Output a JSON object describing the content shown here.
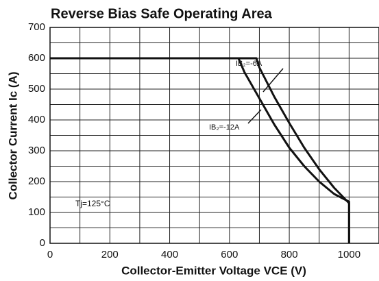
{
  "chart_data": {
    "type": "line",
    "title": "Reverse Bias Safe Operating Area",
    "x_label": "Collector-Emitter Voltage VCE (V)",
    "y_label": "Collector Current Ic (A)",
    "xlim": [
      0,
      1100
    ],
    "ylim": [
      0,
      700
    ],
    "xticks": [
      0,
      200,
      400,
      600,
      800,
      1000
    ],
    "yticks": [
      0,
      100,
      200,
      300,
      400,
      500,
      600,
      700
    ],
    "x_minor_ticks": [
      100,
      300,
      500,
      700,
      900
    ],
    "y_minor_ticks": [
      50,
      150,
      250,
      350,
      450,
      550,
      650
    ],
    "grid": true,
    "series": [
      {
        "name": "IB₂=-6A",
        "color": "#111111",
        "x": [
          0,
          690,
          700,
          750,
          800,
          850,
          900,
          950,
          1000,
          1000
        ],
        "values": [
          600,
          600,
          570,
          475,
          390,
          310,
          240,
          180,
          130,
          0
        ]
      },
      {
        "name": "IB₂=-12A",
        "color": "#111111",
        "x": [
          0,
          630,
          650,
          700,
          750,
          800,
          850,
          900,
          950,
          1000,
          1000
        ],
        "values": [
          600,
          600,
          555,
          470,
          385,
          310,
          250,
          200,
          160,
          135,
          0
        ]
      }
    ],
    "annotations": [
      "Tj=125°C"
    ]
  }
}
